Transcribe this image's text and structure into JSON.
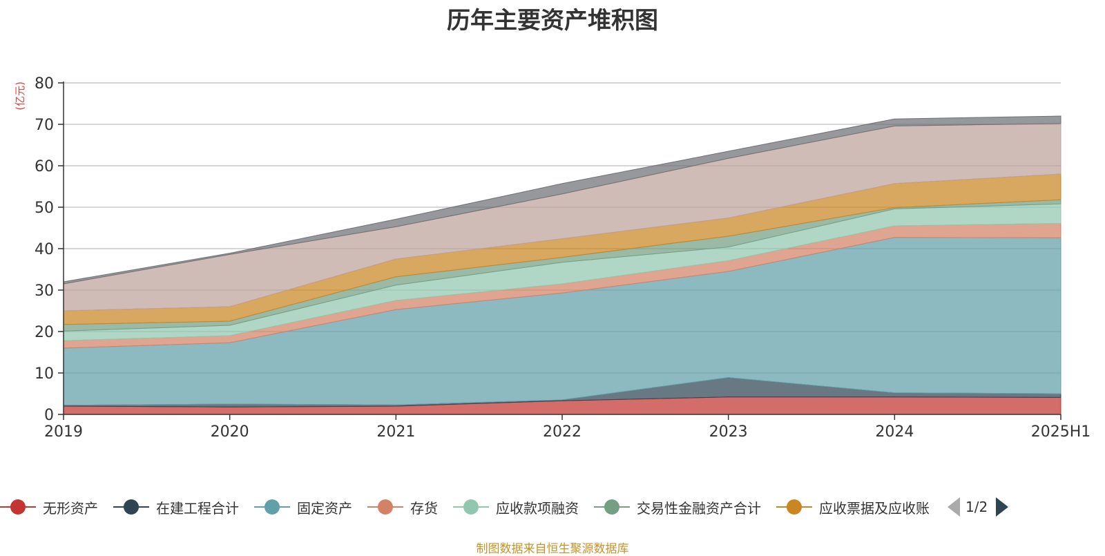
{
  "chart_data": {
    "type": "area",
    "stacked": true,
    "title": "历年主要资产堆积图",
    "ylabel": "(亿元)",
    "ylim": [
      0,
      80
    ],
    "yticks": [
      0,
      10,
      20,
      30,
      40,
      50,
      60,
      70,
      80
    ],
    "grid": true,
    "legend_position": "bottom",
    "categories": [
      "2019",
      "2020",
      "2021",
      "2022",
      "2023",
      "2024",
      "2025H1"
    ],
    "series": [
      {
        "name": "无形资产",
        "color": "#c23531",
        "values": [
          2.0,
          1.8,
          2.0,
          3.3,
          4.2,
          4.2,
          4.1
        ]
      },
      {
        "name": "在建工程合计",
        "color": "#2f4554",
        "values": [
          0.2,
          0.7,
          0.3,
          0.2,
          4.7,
          1.0,
          0.9
        ]
      },
      {
        "name": "固定资产",
        "color": "#61a0a8",
        "values": [
          13.8,
          14.8,
          23.0,
          25.8,
          25.6,
          37.5,
          37.6
        ]
      },
      {
        "name": "存货",
        "color": "#d48265",
        "values": [
          1.8,
          1.7,
          2.2,
          2.2,
          2.6,
          2.8,
          3.5
        ]
      },
      {
        "name": "应收款项融资",
        "color": "#91c7ae",
        "values": [
          2.3,
          2.5,
          3.7,
          5.2,
          3.3,
          4.1,
          4.7
        ]
      },
      {
        "name": "交易性金融资产合计",
        "color": "#749f83",
        "values": [
          1.6,
          1.0,
          2.0,
          1.2,
          2.6,
          0.3,
          1.0
        ]
      },
      {
        "name": "应收票据及应收账",
        "color": "#ca8622",
        "values": [
          3.3,
          3.5,
          4.3,
          4.5,
          4.4,
          5.8,
          6.2
        ]
      },
      {
        "color": "#bda29a",
        "values": [
          6.5,
          12.6,
          7.8,
          10.8,
          14.4,
          13.9,
          12.2
        ]
      },
      {
        "color": "#6e7074",
        "values": [
          0.5,
          0.3,
          1.8,
          2.5,
          1.7,
          1.7,
          1.8
        ]
      }
    ]
  },
  "legend": {
    "items": [
      {
        "label": "无形资产",
        "color": "#c23531"
      },
      {
        "label": "在建工程合计",
        "color": "#2f4554"
      },
      {
        "label": "固定资产",
        "color": "#61a0a8"
      },
      {
        "label": "存货",
        "color": "#d48265"
      },
      {
        "label": "应收款项融资",
        "color": "#91c7ae"
      },
      {
        "label": "交易性金融资产合计",
        "color": "#749f83"
      },
      {
        "label": "应收票据及应收账",
        "color": "#ca8622"
      }
    ],
    "page": "1/2"
  },
  "footer": "制图数据来自恒生聚源数据库"
}
